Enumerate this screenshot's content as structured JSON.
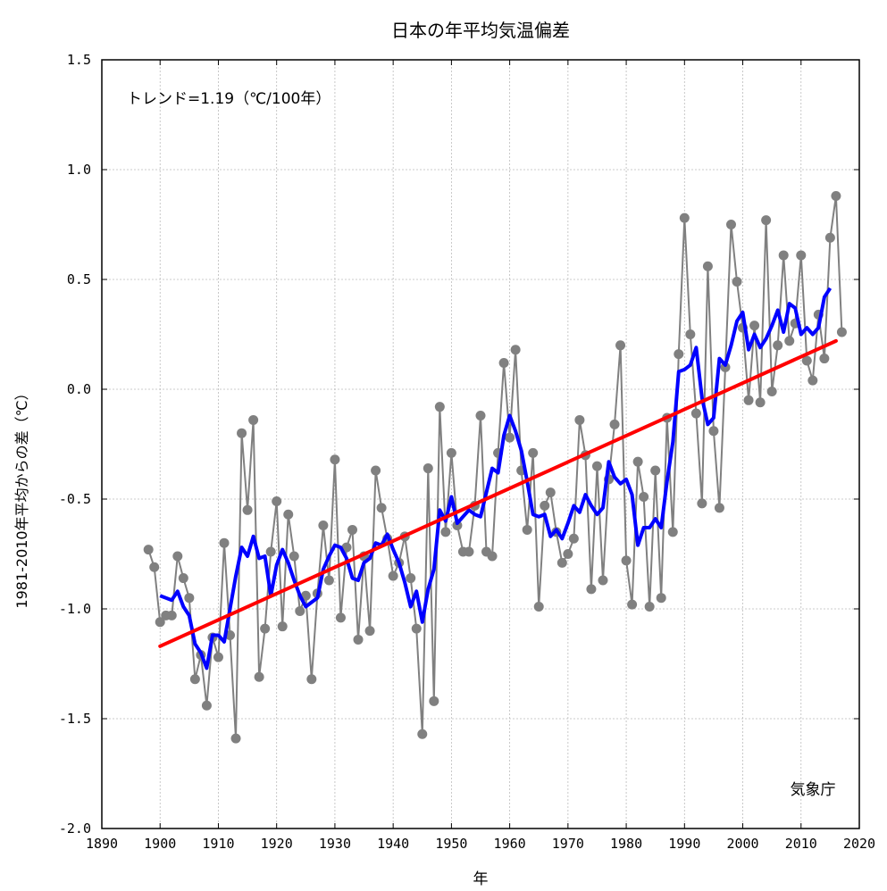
{
  "chart_data": {
    "type": "line",
    "title": "日本の年平均気温偏差",
    "xlabel": "年",
    "ylabel": "1981-2010年平均からの差（℃）",
    "annotation": "トレンド=1.19（℃/100年）",
    "credit": "気象庁",
    "xlim": [
      1890,
      2020
    ],
    "ylim": [
      -2.0,
      1.5
    ],
    "x_ticks": [
      1890,
      1900,
      1910,
      1920,
      1930,
      1940,
      1950,
      1960,
      1970,
      1980,
      1990,
      2000,
      2010,
      2020
    ],
    "y_ticks": [
      -2.0,
      -1.5,
      -1.0,
      -0.5,
      0.0,
      0.5,
      1.0,
      1.5
    ],
    "x_tick_labels": [
      "1890",
      "1900",
      "1910",
      "1920",
      "1930",
      "1940",
      "1950",
      "1960",
      "1970",
      "1980",
      "1990",
      "2000",
      "2010",
      "2020"
    ],
    "y_tick_labels": [
      "-2.0",
      "-1.5",
      "-1.0",
      "-0.5",
      "0.0",
      "0.5",
      "1.0",
      "1.5"
    ],
    "grid": true,
    "colors": {
      "annual": "#808080",
      "moving_average": "#0000ff",
      "trend": "#ff0000",
      "grid": "#bbbbbb"
    },
    "series": [
      {
        "style": "line-with-points",
        "x": [
          1898,
          1899,
          1900,
          1901,
          1902,
          1903,
          1904,
          1905,
          1906,
          1907,
          1908,
          1909,
          1910,
          1911,
          1912,
          1913,
          1914,
          1915,
          1916,
          1917,
          1918,
          1919,
          1920,
          1921,
          1922,
          1923,
          1924,
          1925,
          1926,
          1927,
          1928,
          1929,
          1930,
          1931,
          1932,
          1933,
          1934,
          1935,
          1936,
          1937,
          1938,
          1939,
          1940,
          1941,
          1942,
          1943,
          1944,
          1945,
          1946,
          1947,
          1948,
          1949,
          1950,
          1951,
          1952,
          1953,
          1954,
          1955,
          1956,
          1957,
          1958,
          1959,
          1960,
          1961,
          1962,
          1963,
          1964,
          1965,
          1966,
          1967,
          1968,
          1969,
          1970,
          1971,
          1972,
          1973,
          1974,
          1975,
          1976,
          1977,
          1978,
          1979,
          1980,
          1981,
          1982,
          1983,
          1984,
          1985,
          1986,
          1987,
          1988,
          1989,
          1990,
          1991,
          1992,
          1993,
          1994,
          1995,
          1996,
          1997,
          1998,
          1999,
          2000,
          2001,
          2002,
          2003,
          2004,
          2005,
          2006,
          2007,
          2008,
          2009,
          2010,
          2011,
          2012,
          2013,
          2014,
          2015,
          2016,
          2017
        ],
        "values": [
          -0.73,
          -0.81,
          -1.06,
          -1.03,
          -1.03,
          -0.76,
          -0.86,
          -0.95,
          -1.32,
          -1.21,
          -1.44,
          -1.13,
          -1.22,
          -0.7,
          -1.12,
          -1.59,
          -0.2,
          -0.55,
          -0.14,
          -1.31,
          -1.09,
          -0.74,
          -0.51,
          -1.08,
          -0.57,
          -0.76,
          -1.01,
          -0.94,
          -1.32,
          -0.93,
          -0.62,
          -0.87,
          -0.32,
          -1.04,
          -0.72,
          -0.64,
          -1.14,
          -0.76,
          -1.1,
          -0.37,
          -0.54,
          -0.68,
          -0.85,
          -0.79,
          -0.67,
          -0.86,
          -1.09,
          -1.57,
          -0.36,
          -1.42,
          -0.08,
          -0.65,
          -0.29,
          -0.62,
          -0.74,
          -0.74,
          -0.53,
          -0.12,
          -0.74,
          -0.76,
          -0.29,
          0.12,
          -0.22,
          0.18,
          -0.37,
          -0.64,
          -0.29,
          -0.99,
          -0.53,
          -0.47,
          -0.65,
          -0.79,
          -0.75,
          -0.68,
          -0.14,
          -0.3,
          -0.91,
          -0.35,
          -0.87,
          -0.41,
          -0.16,
          0.2,
          -0.78,
          -0.98,
          -0.33,
          -0.49,
          -0.99,
          -0.37,
          -0.95,
          -0.13,
          -0.65,
          0.16,
          0.78,
          0.25,
          -0.11,
          -0.52,
          0.56,
          -0.19,
          -0.54,
          0.1,
          0.75,
          0.49,
          0.28,
          -0.05,
          0.29,
          -0.06,
          0.77,
          -0.01,
          0.2,
          0.61,
          0.22,
          0.3,
          0.61,
          0.13,
          0.04,
          0.34,
          0.14,
          0.69,
          0.88,
          0.26
        ]
      },
      {
        "style": "moving-average",
        "x": [
          1900,
          1901,
          1902,
          1903,
          1904,
          1905,
          1906,
          1907,
          1908,
          1909,
          1910,
          1911,
          1912,
          1913,
          1914,
          1915,
          1916,
          1917,
          1918,
          1919,
          1920,
          1921,
          1922,
          1923,
          1924,
          1925,
          1926,
          1927,
          1928,
          1929,
          1930,
          1931,
          1932,
          1933,
          1934,
          1935,
          1936,
          1937,
          1938,
          1939,
          1940,
          1941,
          1942,
          1943,
          1944,
          1945,
          1946,
          1947,
          1948,
          1949,
          1950,
          1951,
          1952,
          1953,
          1954,
          1955,
          1956,
          1957,
          1958,
          1959,
          1960,
          1961,
          1962,
          1963,
          1964,
          1965,
          1966,
          1967,
          1968,
          1969,
          1970,
          1971,
          1972,
          1973,
          1974,
          1975,
          1976,
          1977,
          1978,
          1979,
          1980,
          1981,
          1982,
          1983,
          1984,
          1985,
          1986,
          1987,
          1988,
          1989,
          1990,
          1991,
          1992,
          1993,
          1994,
          1995,
          1996,
          1997,
          1998,
          1999,
          2000,
          2001,
          2002,
          2003,
          2004,
          2005,
          2006,
          2007,
          2008,
          2009,
          2010,
          2011,
          2012,
          2013,
          2014,
          2015
        ],
        "values": [
          -0.94,
          -0.95,
          -0.96,
          -0.92,
          -0.99,
          -1.03,
          -1.16,
          -1.2,
          -1.27,
          -1.12,
          -1.12,
          -1.15,
          -1.0,
          -0.85,
          -0.72,
          -0.76,
          -0.67,
          -0.77,
          -0.76,
          -0.94,
          -0.8,
          -0.73,
          -0.79,
          -0.87,
          -0.94,
          -0.99,
          -0.97,
          -0.95,
          -0.82,
          -0.76,
          -0.71,
          -0.72,
          -0.77,
          -0.86,
          -0.87,
          -0.79,
          -0.77,
          -0.7,
          -0.71,
          -0.66,
          -0.73,
          -0.79,
          -0.88,
          -0.99,
          -0.92,
          -1.06,
          -0.91,
          -0.82,
          -0.55,
          -0.6,
          -0.49,
          -0.61,
          -0.58,
          -0.55,
          -0.57,
          -0.58,
          -0.47,
          -0.36,
          -0.38,
          -0.21,
          -0.12,
          -0.19,
          -0.28,
          -0.42,
          -0.57,
          -0.58,
          -0.57,
          -0.67,
          -0.64,
          -0.68,
          -0.61,
          -0.53,
          -0.56,
          -0.48,
          -0.53,
          -0.57,
          -0.54,
          -0.33,
          -0.4,
          -0.43,
          -0.41,
          -0.48,
          -0.71,
          -0.63,
          -0.63,
          -0.59,
          -0.63,
          -0.42,
          -0.24,
          0.08,
          0.09,
          0.11,
          0.19,
          -0.04,
          -0.16,
          -0.13,
          0.14,
          0.11,
          0.2,
          0.31,
          0.35,
          0.18,
          0.25,
          0.19,
          0.23,
          0.29,
          0.36,
          0.26,
          0.39,
          0.37,
          0.25,
          0.28,
          0.25,
          0.28,
          0.42,
          0.46
        ]
      },
      {
        "style": "trend",
        "x": [
          1900,
          2016
        ],
        "values": [
          -1.17,
          0.22
        ]
      }
    ]
  }
}
